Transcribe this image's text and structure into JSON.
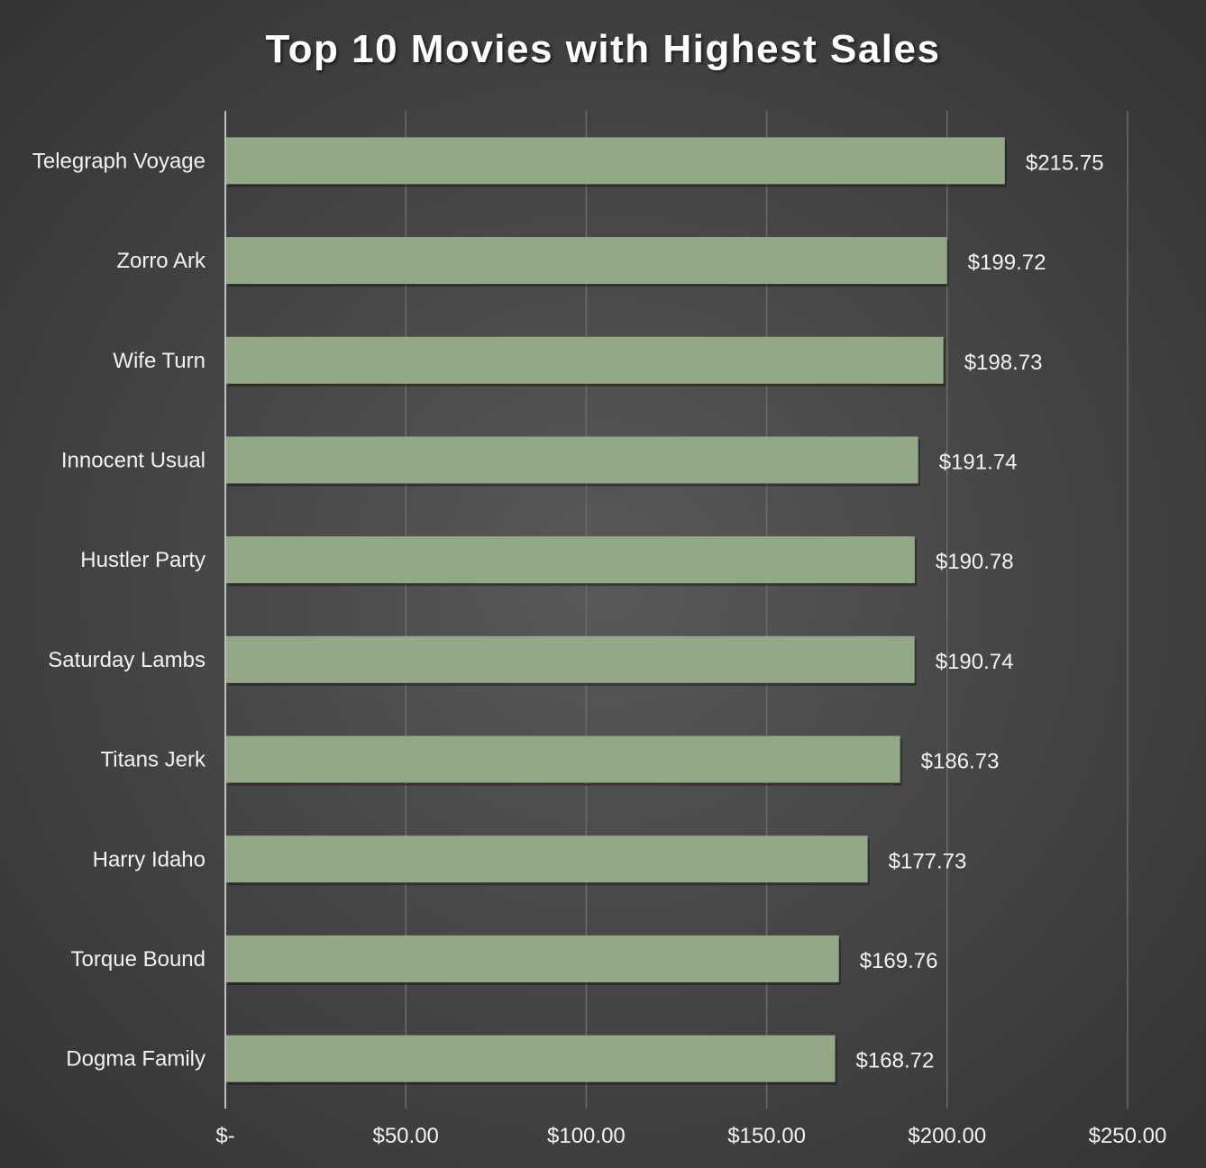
{
  "chart_data": {
    "type": "bar",
    "orientation": "horizontal",
    "title": "Top 10 Movies with Highest Sales",
    "xlabel": "",
    "ylabel": "",
    "xlim": [
      0,
      250
    ],
    "x_ticks": [
      0,
      50,
      100,
      150,
      200,
      250
    ],
    "x_tick_labels": [
      "$-",
      "$50.00",
      "$100.00",
      "$150.00",
      "$200.00",
      "$250.00"
    ],
    "grid": "vertical",
    "legend": "none",
    "bar_color": "#92a886",
    "categories": [
      "Telegraph Voyage",
      "Zorro Ark",
      "Wife Turn",
      "Innocent Usual",
      "Hustler Party",
      "Saturday Lambs",
      "Titans Jerk",
      "Harry Idaho",
      "Torque Bound",
      "Dogma Family"
    ],
    "values": [
      215.75,
      199.72,
      198.73,
      191.74,
      190.78,
      190.74,
      186.73,
      177.73,
      169.76,
      168.72
    ],
    "data_labels": [
      "$215.75",
      "$199.72",
      "$198.73",
      "$191.74",
      "$190.78",
      "$190.74",
      "$186.73",
      "$177.73",
      "$169.76",
      "$168.72"
    ]
  }
}
